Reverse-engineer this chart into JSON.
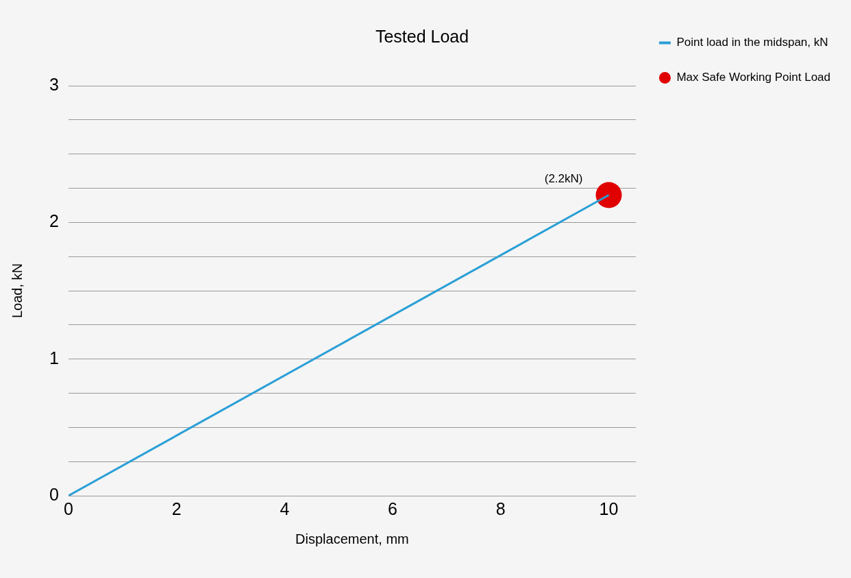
{
  "chart_data": {
    "type": "line",
    "title": "Tested Load",
    "xlabel": "Displacement, mm",
    "ylabel": "Load, kN",
    "series": [
      {
        "name": "Point load in the midspan, kN",
        "type": "line",
        "color": "#2a9fd6",
        "values": [
          0,
          2.2
        ],
        "marker": "none"
      },
      {
        "name": "Max Safe Working Point Load",
        "type": "scatter",
        "color": "#e00000",
        "values": [
          null,
          2.2
        ],
        "marker": "circle"
      }
    ],
    "x": [
      0,
      10
    ],
    "annotations": [
      {
        "text": "(2.2kN)",
        "x": 10,
        "y": 2.2
      }
    ],
    "xlim": [
      0,
      10.5
    ],
    "xticks": [
      0,
      2,
      4,
      6,
      8,
      10
    ],
    "ylim": [
      0,
      3
    ],
    "yticks": [
      0,
      {
        "value": 0.25,
        "label": null
      },
      {
        "value": 0.5,
        "label": null
      },
      {
        "value": 0.75,
        "label": null
      },
      1,
      {
        "value": 1.25,
        "label": null
      },
      {
        "value": 1.5,
        "label": null
      },
      {
        "value": 1.75,
        "label": null
      },
      2,
      {
        "value": 2.25,
        "label": null
      },
      {
        "value": 2.5,
        "label": null
      },
      {
        "value": 2.75,
        "label": null
      },
      3
    ],
    "grid": "y",
    "legend": "top right"
  }
}
